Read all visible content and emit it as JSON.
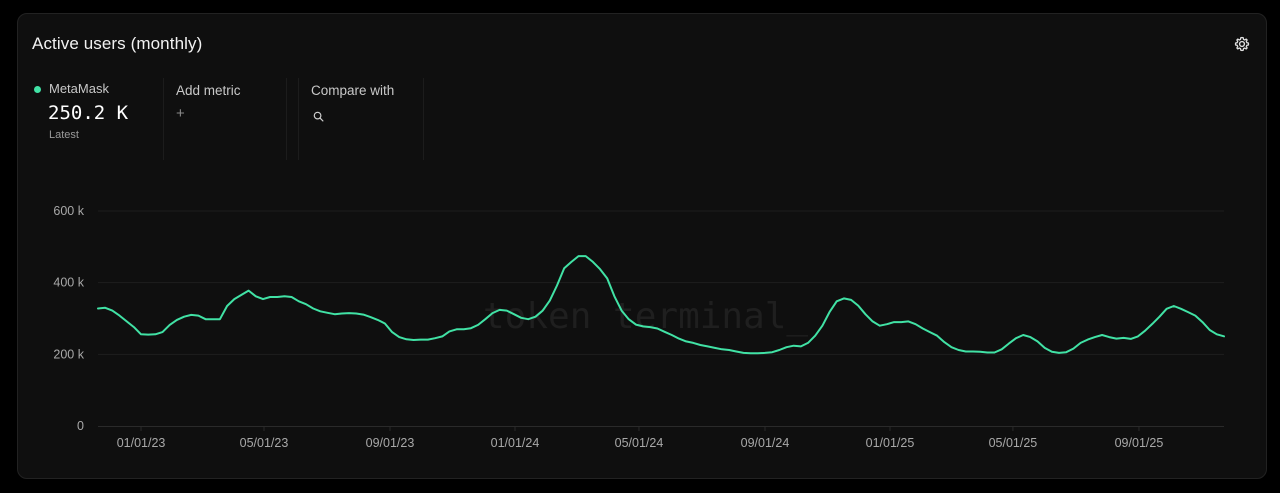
{
  "card": {
    "title": "Active users (monthly)",
    "settings_icon": "gear-icon"
  },
  "metric": {
    "name": "MetaMask",
    "value": "250.2 K",
    "sublabel": "Latest",
    "color": "#41e2a5"
  },
  "add_metric": {
    "label": "Add metric",
    "icon": "+"
  },
  "compare": {
    "label": "Compare with",
    "icon": "search-icon"
  },
  "watermark": "token terminal_",
  "chart_data": {
    "type": "line",
    "title": "",
    "xlabel": "",
    "ylabel": "",
    "ylim": [
      0,
      600000
    ],
    "yticks": [
      {
        "value": 0,
        "label": "0"
      },
      {
        "value": 200000,
        "label": "200 k"
      },
      {
        "value": 400000,
        "label": "400 k"
      },
      {
        "value": 600000,
        "label": "600 k"
      }
    ],
    "xticks": [
      "01/01/23",
      "05/01/23",
      "09/01/23",
      "01/01/24",
      "05/01/24",
      "09/01/24",
      "01/01/25",
      "05/01/25",
      "09/01/25"
    ],
    "grid": true,
    "series": [
      {
        "name": "MetaMask",
        "color": "#41e2a5",
        "points": [
          [
            "2022-11-20",
            328000
          ],
          [
            "2022-11-27",
            330000
          ],
          [
            "2022-12-04",
            322000
          ],
          [
            "2022-12-11",
            308000
          ],
          [
            "2022-12-18",
            292000
          ],
          [
            "2022-12-25",
            276000
          ],
          [
            "2023-01-01",
            256000
          ],
          [
            "2023-01-08",
            255000
          ],
          [
            "2023-01-15",
            256000
          ],
          [
            "2023-01-22",
            262000
          ],
          [
            "2023-01-29",
            282000
          ],
          [
            "2023-02-05",
            296000
          ],
          [
            "2023-02-12",
            305000
          ],
          [
            "2023-02-19",
            310000
          ],
          [
            "2023-02-26",
            308000
          ],
          [
            "2023-03-05",
            298000
          ],
          [
            "2023-03-12",
            298000
          ],
          [
            "2023-03-19",
            298000
          ],
          [
            "2023-03-26",
            335000
          ],
          [
            "2023-04-02",
            354000
          ],
          [
            "2023-04-09",
            366000
          ],
          [
            "2023-04-16",
            378000
          ],
          [
            "2023-04-23",
            362000
          ],
          [
            "2023-04-30",
            354000
          ],
          [
            "2023-05-07",
            360000
          ],
          [
            "2023-05-14",
            360000
          ],
          [
            "2023-05-21",
            362000
          ],
          [
            "2023-05-28",
            360000
          ],
          [
            "2023-06-04",
            348000
          ],
          [
            "2023-06-11",
            340000
          ],
          [
            "2023-06-18",
            328000
          ],
          [
            "2023-06-25",
            320000
          ],
          [
            "2023-07-02",
            316000
          ],
          [
            "2023-07-09",
            312000
          ],
          [
            "2023-07-16",
            314000
          ],
          [
            "2023-07-23",
            315000
          ],
          [
            "2023-07-30",
            314000
          ],
          [
            "2023-08-06",
            311000
          ],
          [
            "2023-08-13",
            304000
          ],
          [
            "2023-08-20",
            296000
          ],
          [
            "2023-08-27",
            286000
          ],
          [
            "2023-09-03",
            262000
          ],
          [
            "2023-09-10",
            248000
          ],
          [
            "2023-09-17",
            242000
          ],
          [
            "2023-09-24",
            240000
          ],
          [
            "2023-10-01",
            241000
          ],
          [
            "2023-10-08",
            241000
          ],
          [
            "2023-10-15",
            245000
          ],
          [
            "2023-10-22",
            250000
          ],
          [
            "2023-10-29",
            264000
          ],
          [
            "2023-11-05",
            270000
          ],
          [
            "2023-11-12",
            270000
          ],
          [
            "2023-11-19",
            273000
          ],
          [
            "2023-11-26",
            282000
          ],
          [
            "2023-12-03",
            298000
          ],
          [
            "2023-12-10",
            315000
          ],
          [
            "2023-12-17",
            324000
          ],
          [
            "2023-12-24",
            322000
          ],
          [
            "2023-12-31",
            312000
          ],
          [
            "2024-01-07",
            302000
          ],
          [
            "2024-01-14",
            298000
          ],
          [
            "2024-01-21",
            305000
          ],
          [
            "2024-01-28",
            322000
          ],
          [
            "2024-02-04",
            350000
          ],
          [
            "2024-02-11",
            392000
          ],
          [
            "2024-02-18",
            440000
          ],
          [
            "2024-02-25",
            458000
          ],
          [
            "2024-03-03",
            474000
          ],
          [
            "2024-03-10",
            474000
          ],
          [
            "2024-03-17",
            458000
          ],
          [
            "2024-03-24",
            438000
          ],
          [
            "2024-03-31",
            412000
          ],
          [
            "2024-04-07",
            362000
          ],
          [
            "2024-04-14",
            322000
          ],
          [
            "2024-04-21",
            298000
          ],
          [
            "2024-04-28",
            283000
          ],
          [
            "2024-05-05",
            278000
          ],
          [
            "2024-05-12",
            276000
          ],
          [
            "2024-05-19",
            272000
          ],
          [
            "2024-05-26",
            263000
          ],
          [
            "2024-06-02",
            254000
          ],
          [
            "2024-06-09",
            244000
          ],
          [
            "2024-06-16",
            236000
          ],
          [
            "2024-06-23",
            232000
          ],
          [
            "2024-06-30",
            226000
          ],
          [
            "2024-07-07",
            222000
          ],
          [
            "2024-07-14",
            218000
          ],
          [
            "2024-07-21",
            214000
          ],
          [
            "2024-07-28",
            212000
          ],
          [
            "2024-08-04",
            208000
          ],
          [
            "2024-08-11",
            204000
          ],
          [
            "2024-08-18",
            203000
          ],
          [
            "2024-08-25",
            203000
          ],
          [
            "2024-09-01",
            204000
          ],
          [
            "2024-09-08",
            206000
          ],
          [
            "2024-09-15",
            212000
          ],
          [
            "2024-09-22",
            220000
          ],
          [
            "2024-09-29",
            224000
          ],
          [
            "2024-10-06",
            222000
          ],
          [
            "2024-10-13",
            232000
          ],
          [
            "2024-10-20",
            252000
          ],
          [
            "2024-10-27",
            280000
          ],
          [
            "2024-11-03",
            318000
          ],
          [
            "2024-11-10",
            348000
          ],
          [
            "2024-11-17",
            356000
          ],
          [
            "2024-11-24",
            352000
          ],
          [
            "2024-12-01",
            336000
          ],
          [
            "2024-12-08",
            312000
          ],
          [
            "2024-12-15",
            292000
          ],
          [
            "2024-12-22",
            280000
          ],
          [
            "2024-12-29",
            284000
          ],
          [
            "2025-01-05",
            290000
          ],
          [
            "2025-01-12",
            290000
          ],
          [
            "2025-01-19",
            292000
          ],
          [
            "2025-01-26",
            284000
          ],
          [
            "2025-02-02",
            272000
          ],
          [
            "2025-02-09",
            262000
          ],
          [
            "2025-02-16",
            252000
          ],
          [
            "2025-02-23",
            234000
          ],
          [
            "2025-03-02",
            220000
          ],
          [
            "2025-03-09",
            212000
          ],
          [
            "2025-03-16",
            208000
          ],
          [
            "2025-03-23",
            208000
          ],
          [
            "2025-03-30",
            207000
          ],
          [
            "2025-04-06",
            205000
          ],
          [
            "2025-04-13",
            205000
          ],
          [
            "2025-04-20",
            214000
          ],
          [
            "2025-04-27",
            230000
          ],
          [
            "2025-05-04",
            245000
          ],
          [
            "2025-05-11",
            254000
          ],
          [
            "2025-05-18",
            248000
          ],
          [
            "2025-05-25",
            236000
          ],
          [
            "2025-06-01",
            218000
          ],
          [
            "2025-06-08",
            207000
          ],
          [
            "2025-06-15",
            204000
          ],
          [
            "2025-06-22",
            206000
          ],
          [
            "2025-06-29",
            216000
          ],
          [
            "2025-07-06",
            232000
          ],
          [
            "2025-07-13",
            241000
          ],
          [
            "2025-07-20",
            248000
          ],
          [
            "2025-07-27",
            254000
          ],
          [
            "2025-08-03",
            248000
          ],
          [
            "2025-08-10",
            244000
          ],
          [
            "2025-08-17",
            246000
          ],
          [
            "2025-08-24",
            243000
          ],
          [
            "2025-08-31",
            250000
          ],
          [
            "2025-09-07",
            266000
          ],
          [
            "2025-09-14",
            285000
          ],
          [
            "2025-09-21",
            305000
          ],
          [
            "2025-09-28",
            327000
          ],
          [
            "2025-10-05",
            335000
          ],
          [
            "2025-10-12",
            327000
          ],
          [
            "2025-10-19",
            318000
          ],
          [
            "2025-10-26",
            308000
          ],
          [
            "2025-11-02",
            290000
          ],
          [
            "2025-11-09",
            268000
          ],
          [
            "2025-11-16",
            256000
          ],
          [
            "2025-11-23",
            250200
          ]
        ]
      }
    ]
  }
}
